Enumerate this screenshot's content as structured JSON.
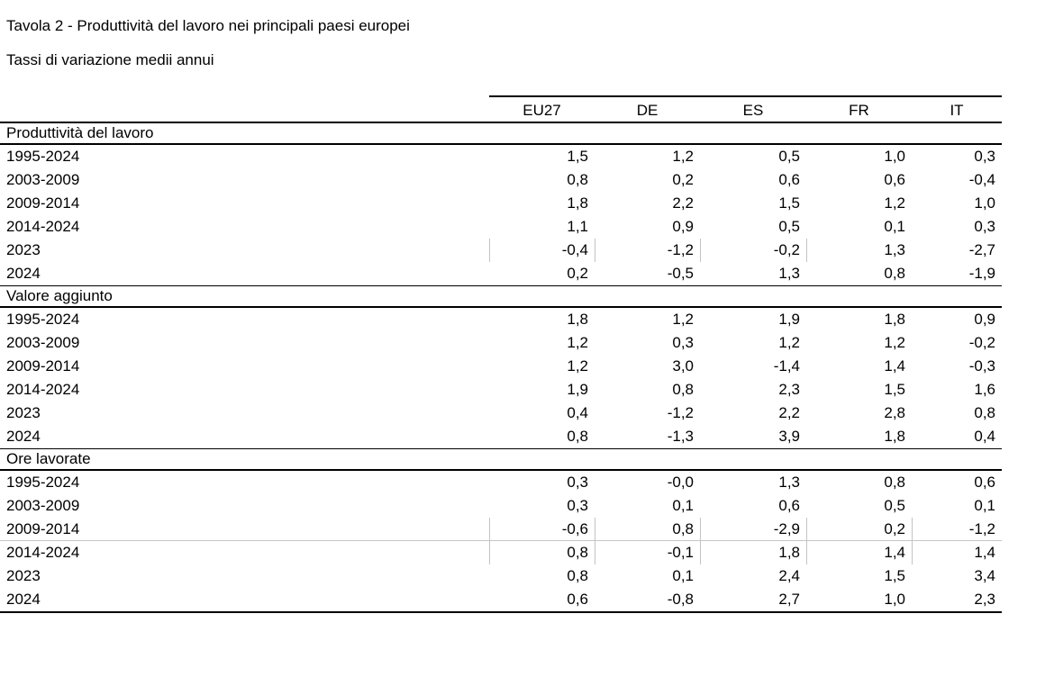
{
  "page": {
    "title": "Tavola 2 - Produttività del lavoro nei principali paesi europei",
    "subtitle": "Tassi di variazione medii annui"
  },
  "style": {
    "background": "#ffffff",
    "text_color": "#000000",
    "rule_color": "#000000",
    "faint_gridline_color": "#c6c6c6"
  },
  "table": {
    "columns": [
      "EU27",
      "DE",
      "ES",
      "FR",
      "IT"
    ],
    "sections": [
      {
        "title": "Produttività del lavoro",
        "rows": [
          {
            "label": "1995-2024",
            "values": [
              "1,5",
              "1,2",
              "0,5",
              "1,0",
              "0,3"
            ]
          },
          {
            "label": "2003-2009",
            "values": [
              "0,8",
              "0,2",
              "0,6",
              "0,6",
              "-0,4"
            ]
          },
          {
            "label": "2009-2014",
            "values": [
              "1,8",
              "2,2",
              "1,5",
              "1,2",
              "1,0"
            ]
          },
          {
            "label": "2014-2024",
            "values": [
              "1,1",
              "0,9",
              "0,5",
              "0,1",
              "0,3"
            ]
          },
          {
            "label": "2023",
            "values": [
              "-0,4",
              "-1,2",
              "-0,2",
              "1,3",
              "-2,7"
            ],
            "ticks": [
              0,
              1,
              2,
              3
            ]
          },
          {
            "label": "2024",
            "values": [
              "0,2",
              "-0,5",
              "1,3",
              "0,8",
              "-1,9"
            ]
          }
        ]
      },
      {
        "title": "Valore aggiunto",
        "rows": [
          {
            "label": "1995-2024",
            "values": [
              "1,8",
              "1,2",
              "1,9",
              "1,8",
              "0,9"
            ]
          },
          {
            "label": "2003-2009",
            "values": [
              "1,2",
              "0,3",
              "1,2",
              "1,2",
              "-0,2"
            ]
          },
          {
            "label": "2009-2014",
            "values": [
              "1,2",
              "3,0",
              "-1,4",
              "1,4",
              "-0,3"
            ]
          },
          {
            "label": "2014-2024",
            "values": [
              "1,9",
              "0,8",
              "2,3",
              "1,5",
              "1,6"
            ]
          },
          {
            "label": "2023",
            "values": [
              "0,4",
              "-1,2",
              "2,2",
              "2,8",
              "0,8"
            ]
          },
          {
            "label": "2024",
            "values": [
              "0,8",
              "-1,3",
              "3,9",
              "1,8",
              "0,4"
            ]
          }
        ]
      },
      {
        "title": "Ore lavorate",
        "rows": [
          {
            "label": "1995-2024",
            "values": [
              "0,3",
              "-0,0",
              "1,3",
              "0,8",
              "0,6"
            ]
          },
          {
            "label": "2003-2009",
            "values": [
              "0,3",
              "0,1",
              "0,6",
              "0,5",
              "0,1"
            ]
          },
          {
            "label": "2009-2014",
            "values": [
              "-0,6",
              "0,8",
              "-2,9",
              "0,2",
              "-1,2"
            ],
            "ticks": [
              0,
              1,
              2,
              3,
              4
            ],
            "gray_rule_below": true
          },
          {
            "label": "2014-2024",
            "values": [
              "0,8",
              "-0,1",
              "1,8",
              "1,4",
              "1,4"
            ],
            "ticks": [
              0,
              1,
              2,
              3,
              4
            ]
          },
          {
            "label": "2023",
            "values": [
              "0,8",
              "0,1",
              "2,4",
              "1,5",
              "3,4"
            ]
          },
          {
            "label": "2024",
            "values": [
              "0,6",
              "-0,8",
              "2,7",
              "1,0",
              "2,3"
            ]
          }
        ]
      }
    ]
  },
  "chart_data": {
    "type": "table",
    "title": "Tavola 2 - Produttività del lavoro nei principali paesi europei",
    "subtitle": "Tassi di variazione medii annui",
    "columns": [
      "EU27",
      "DE",
      "ES",
      "FR",
      "IT"
    ],
    "sections": [
      {
        "name": "Produttività del lavoro",
        "rows": [
          {
            "period": "1995-2024",
            "values": [
              1.5,
              1.2,
              0.5,
              1.0,
              0.3
            ]
          },
          {
            "period": "2003-2009",
            "values": [
              0.8,
              0.2,
              0.6,
              0.6,
              -0.4
            ]
          },
          {
            "period": "2009-2014",
            "values": [
              1.8,
              2.2,
              1.5,
              1.2,
              1.0
            ]
          },
          {
            "period": "2014-2024",
            "values": [
              1.1,
              0.9,
              0.5,
              0.1,
              0.3
            ]
          },
          {
            "period": "2023",
            "values": [
              -0.4,
              -1.2,
              -0.2,
              1.3,
              -2.7
            ]
          },
          {
            "period": "2024",
            "values": [
              0.2,
              -0.5,
              1.3,
              0.8,
              -1.9
            ]
          }
        ]
      },
      {
        "name": "Valore aggiunto",
        "rows": [
          {
            "period": "1995-2024",
            "values": [
              1.8,
              1.2,
              1.9,
              1.8,
              0.9
            ]
          },
          {
            "period": "2003-2009",
            "values": [
              1.2,
              0.3,
              1.2,
              1.2,
              -0.2
            ]
          },
          {
            "period": "2009-2014",
            "values": [
              1.2,
              3.0,
              -1.4,
              1.4,
              -0.3
            ]
          },
          {
            "period": "2014-2024",
            "values": [
              1.9,
              0.8,
              2.3,
              1.5,
              1.6
            ]
          },
          {
            "period": "2023",
            "values": [
              0.4,
              -1.2,
              2.2,
              2.8,
              0.8
            ]
          },
          {
            "period": "2024",
            "values": [
              0.8,
              -1.3,
              3.9,
              1.8,
              0.4
            ]
          }
        ]
      },
      {
        "name": "Ore lavorate",
        "rows": [
          {
            "period": "1995-2024",
            "values": [
              0.3,
              -0.0,
              1.3,
              0.8,
              0.6
            ]
          },
          {
            "period": "2003-2009",
            "values": [
              0.3,
              0.1,
              0.6,
              0.5,
              0.1
            ]
          },
          {
            "period": "2009-2014",
            "values": [
              -0.6,
              0.8,
              -2.9,
              0.2,
              -1.2
            ]
          },
          {
            "period": "2014-2024",
            "values": [
              0.8,
              -0.1,
              1.8,
              1.4,
              1.4
            ]
          },
          {
            "period": "2023",
            "values": [
              0.8,
              0.1,
              2.4,
              1.5,
              3.4
            ]
          },
          {
            "period": "2024",
            "values": [
              0.6,
              -0.8,
              2.7,
              1.0,
              2.3
            ]
          }
        ]
      }
    ]
  }
}
